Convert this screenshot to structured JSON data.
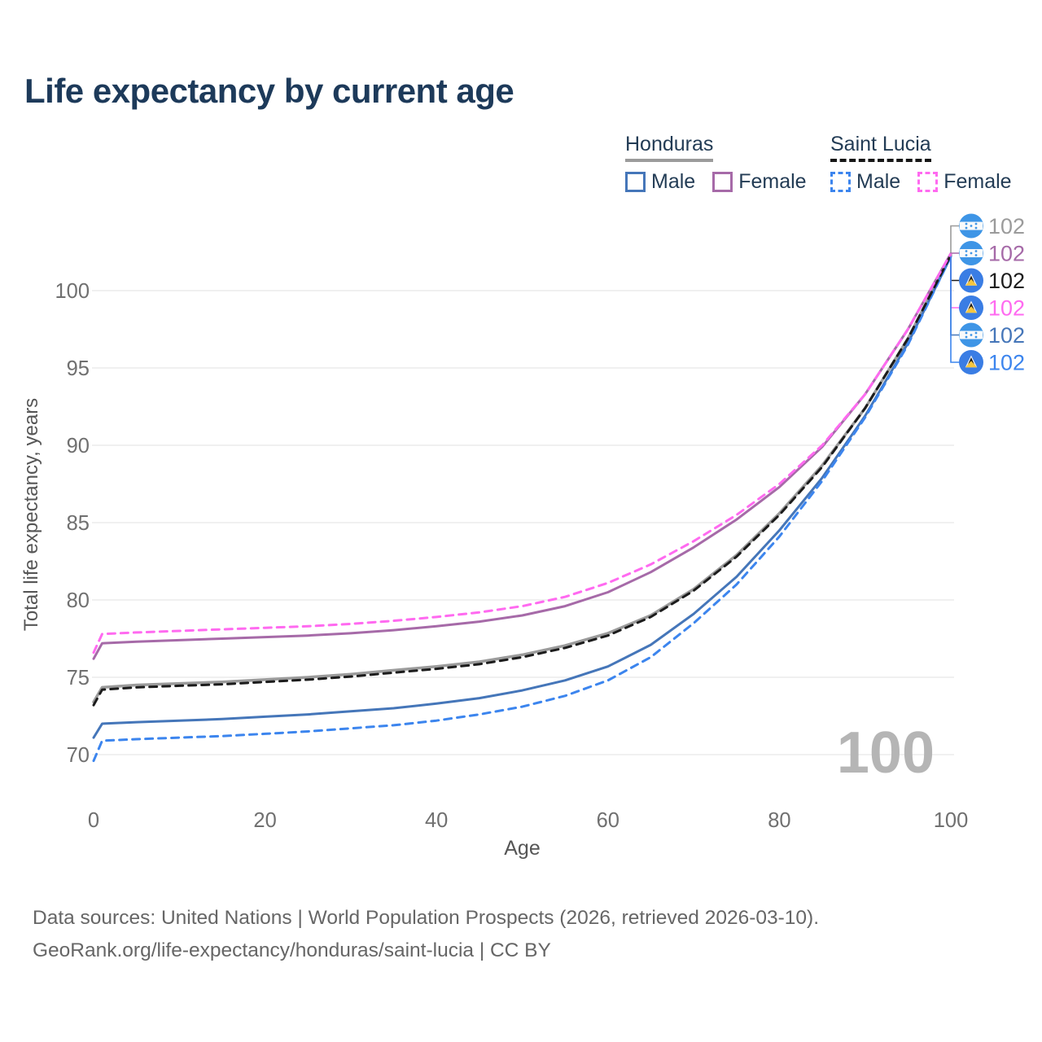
{
  "title": "Life expectancy by current age",
  "legend": {
    "groups": [
      {
        "label": "Honduras",
        "line_style": "solid",
        "underline_color": "#9b9b9b",
        "items": [
          {
            "label": "Male",
            "color": "#4576b9"
          },
          {
            "label": "Female",
            "color": "#a66aa8"
          }
        ]
      },
      {
        "label": "Saint Lucia",
        "line_style": "dashed",
        "underline_color": "#161616",
        "items": [
          {
            "label": "Male",
            "color": "#3c85ee"
          },
          {
            "label": "Female",
            "color": "#ff6af0"
          }
        ]
      }
    ]
  },
  "watermark_age": "100",
  "chart_data": {
    "type": "line",
    "title": "Life expectancy by current age",
    "xlabel": "Age",
    "ylabel": "Total life expectancy, years",
    "xticks": [
      0,
      20,
      40,
      60,
      80,
      100
    ],
    "yticks": [
      70,
      75,
      80,
      85,
      90,
      95,
      100
    ],
    "xlim": [
      0,
      100
    ],
    "ylim": [
      69,
      103
    ],
    "grid": true,
    "legend_position": "top-right",
    "x": [
      0,
      1,
      5,
      10,
      15,
      20,
      25,
      30,
      35,
      40,
      45,
      50,
      55,
      60,
      65,
      70,
      75,
      80,
      85,
      90,
      95,
      100
    ],
    "series": [
      {
        "name": "Honduras Total",
        "flag": "honduras",
        "color": "#9b9b9b",
        "dashed": false,
        "width": 3.5,
        "end_label": "102",
        "values": [
          73.4,
          74.35,
          74.5,
          74.6,
          74.7,
          74.85,
          75.0,
          75.2,
          75.45,
          75.7,
          76.0,
          76.45,
          77.05,
          77.85,
          79.0,
          80.7,
          82.9,
          85.6,
          88.7,
          92.4,
          96.9,
          102.3
        ]
      },
      {
        "name": "Honduras Female",
        "flag": "honduras",
        "color": "#a66aa8",
        "dashed": false,
        "width": 3,
        "end_label": "102",
        "values": [
          76.2,
          77.2,
          77.3,
          77.4,
          77.5,
          77.6,
          77.7,
          77.85,
          78.05,
          78.3,
          78.6,
          79.0,
          79.6,
          80.5,
          81.8,
          83.4,
          85.2,
          87.3,
          89.9,
          93.3,
          97.5,
          102.4
        ]
      },
      {
        "name": "Saint Lucia Total",
        "flag": "saint-lucia",
        "color": "#1c1c1c",
        "dashed": true,
        "width": 3,
        "end_label": "102",
        "values": [
          73.2,
          74.2,
          74.35,
          74.45,
          74.55,
          74.7,
          74.85,
          75.05,
          75.3,
          75.55,
          75.85,
          76.3,
          76.9,
          77.7,
          78.9,
          80.6,
          82.8,
          85.5,
          88.6,
          92.4,
          96.9,
          102.3
        ]
      },
      {
        "name": "Saint Lucia Female",
        "flag": "saint-lucia",
        "color": "#ff6af0",
        "dashed": true,
        "width": 3,
        "end_label": "102",
        "values": [
          76.6,
          77.8,
          77.9,
          78.0,
          78.1,
          78.2,
          78.3,
          78.45,
          78.65,
          78.9,
          79.2,
          79.6,
          80.2,
          81.1,
          82.3,
          83.8,
          85.5,
          87.5,
          90.0,
          93.3,
          97.5,
          102.4
        ]
      },
      {
        "name": "Honduras Male",
        "flag": "honduras",
        "color": "#4576b9",
        "dashed": false,
        "width": 3,
        "end_label": "102",
        "values": [
          71.1,
          72.0,
          72.1,
          72.2,
          72.3,
          72.45,
          72.6,
          72.8,
          73.0,
          73.3,
          73.65,
          74.15,
          74.8,
          75.7,
          77.1,
          79.1,
          81.5,
          84.5,
          87.9,
          91.9,
          96.6,
          102.2
        ]
      },
      {
        "name": "Saint Lucia Male",
        "flag": "saint-lucia",
        "color": "#3c85ee",
        "dashed": true,
        "width": 3,
        "end_label": "102",
        "values": [
          69.6,
          70.9,
          71.0,
          71.1,
          71.2,
          71.35,
          71.5,
          71.7,
          71.9,
          72.2,
          72.6,
          73.1,
          73.8,
          74.8,
          76.3,
          78.5,
          81.0,
          84.1,
          87.7,
          91.8,
          96.5,
          102.2
        ]
      }
    ]
  },
  "colors": {
    "grid": "#e8e8e8",
    "tick_text": "#707070",
    "axis_title_text": "#565656",
    "watermark": "#b5b5b5",
    "honduras_flag_blue": "#3e95e6",
    "saint_lucia_flag_blue": "#3a7de4"
  },
  "footer": {
    "line1": "Data sources: United Nations | World Population Prospects (2026, retrieved 2026-03-10).",
    "line2": "GeoRank.org/life-expectancy/honduras/saint-lucia | CC BY"
  }
}
